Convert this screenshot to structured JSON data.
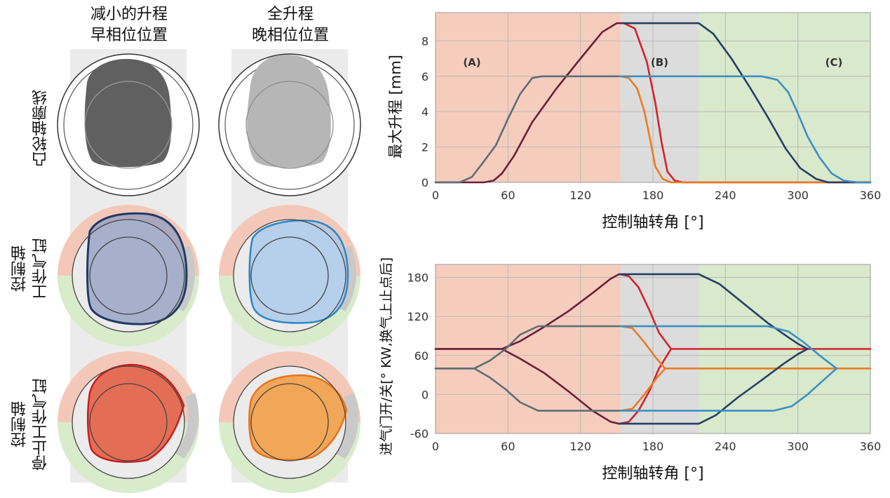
{
  "left": {
    "columns": [
      {
        "line1": "减小的升程",
        "line2": "早相位位置"
      },
      {
        "line1": "全升程",
        "line2": "晚相位位置"
      }
    ],
    "rows": [
      {
        "lines": [
          "凸轮轴廓线"
        ]
      },
      {
        "lines": [
          "控制轴",
          "工作气缸"
        ]
      },
      {
        "lines": [
          "控制轴",
          "停止工作气缸"
        ]
      }
    ]
  },
  "colors": {
    "zoneA": "#f6cdbd",
    "zoneB": "#dcdcdc",
    "zoneC": "#d9e9cc",
    "darkred": "#6b1f3b",
    "red": "#d3222a",
    "gray": "#5e6e76",
    "orange": "#ec7b22",
    "navy": "#243f66",
    "blue": "#3c90c4"
  },
  "chart_data": [
    {
      "type": "line",
      "xlabel": "控制轴转角 [°]",
      "ylabel": "最大升程 [mm]",
      "xlim": [
        0,
        360
      ],
      "ylim": [
        0,
        9.6
      ],
      "xticks": [
        "0",
        "60",
        "120",
        "180",
        "240",
        "300",
        "360"
      ],
      "yticks": [
        "0",
        "2",
        "4",
        "6",
        "8"
      ],
      "zones": [
        {
          "label": "(A)",
          "from": 0,
          "to": 153
        },
        {
          "label": "(B)",
          "from": 153,
          "to": 218
        },
        {
          "label": "(C)",
          "from": 218,
          "to": 360
        }
      ],
      "series": [
        {
          "name": "dark-red",
          "color": "#6b1f3b",
          "points": [
            [
              0,
              0
            ],
            [
              40,
              0
            ],
            [
              48,
              0.1
            ],
            [
              55,
              0.5
            ],
            [
              65,
              1.5
            ],
            [
              80,
              3.4
            ],
            [
              100,
              5.3
            ],
            [
              120,
              7.0
            ],
            [
              138,
              8.5
            ],
            [
              150,
              9.0
            ],
            [
              156,
              9.0
            ]
          ]
        },
        {
          "name": "red",
          "color": "#d3222a",
          "points": [
            [
              156,
              9.0
            ],
            [
              165,
              8.7
            ],
            [
              175,
              6.8
            ],
            [
              182,
              4.5
            ],
            [
              187,
              2.3
            ],
            [
              192,
              0.6
            ],
            [
              198,
              0.1
            ],
            [
              205,
              0
            ],
            [
              360,
              0
            ]
          ]
        },
        {
          "name": "gray",
          "color": "#5e6e76",
          "points": [
            [
              0,
              0
            ],
            [
              20,
              0
            ],
            [
              30,
              0.3
            ],
            [
              38,
              1.0
            ],
            [
              50,
              2.1
            ],
            [
              60,
              3.6
            ],
            [
              70,
              5.0
            ],
            [
              80,
              5.9
            ],
            [
              88,
              6.0
            ],
            [
              153,
              6.0
            ]
          ]
        },
        {
          "name": "orange",
          "color": "#ec7b22",
          "points": [
            [
              153,
              6.0
            ],
            [
              160,
              5.9
            ],
            [
              167,
              5.3
            ],
            [
              173,
              4.0
            ],
            [
              178,
              2.3
            ],
            [
              182,
              0.9
            ],
            [
              188,
              0.2
            ],
            [
              195,
              0
            ],
            [
              360,
              0
            ]
          ]
        },
        {
          "name": "navy",
          "color": "#243f66",
          "points": [
            [
              156,
              9.0
            ],
            [
              218,
              9.0
            ],
            [
              230,
              8.4
            ],
            [
              245,
              7.0
            ],
            [
              260,
              5.4
            ],
            [
              275,
              3.7
            ],
            [
              290,
              1.9
            ],
            [
              302,
              0.8
            ],
            [
              315,
              0.2
            ],
            [
              325,
              0
            ],
            [
              360,
              0
            ]
          ]
        },
        {
          "name": "blue",
          "color": "#3c90c4",
          "points": [
            [
              153,
              6.0
            ],
            [
              270,
              6.0
            ],
            [
              283,
              5.8
            ],
            [
              292,
              5.1
            ],
            [
              300,
              3.9
            ],
            [
              308,
              2.6
            ],
            [
              318,
              1.4
            ],
            [
              328,
              0.5
            ],
            [
              338,
              0.1
            ],
            [
              350,
              0
            ],
            [
              360,
              0
            ]
          ]
        }
      ]
    },
    {
      "type": "line",
      "xlabel": "控制轴转角 [°]",
      "ylabel": "进气门开/关[° KW,换气上止点后]",
      "xlim": [
        0,
        360
      ],
      "ylim": [
        -60,
        200
      ],
      "xticks": [
        "0",
        "60",
        "120",
        "180",
        "240",
        "300",
        "360"
      ],
      "yticks": [
        "-60",
        "0",
        "60",
        "120",
        "180"
      ],
      "zones": [
        {
          "label": "",
          "from": 0,
          "to": 153
        },
        {
          "label": "",
          "from": 153,
          "to": 218
        },
        {
          "label": "",
          "from": 218,
          "to": 360
        }
      ],
      "series": [
        {
          "name": "dark-red-close",
          "color": "#6b1f3b",
          "points": [
            [
              0,
              70
            ],
            [
              55,
              70
            ],
            [
              70,
              82
            ],
            [
              90,
              104
            ],
            [
              110,
              128
            ],
            [
              130,
              156
            ],
            [
              145,
              178
            ],
            [
              152,
              185
            ]
          ]
        },
        {
          "name": "dark-red-open",
          "color": "#6b1f3b",
          "points": [
            [
              0,
              70
            ],
            [
              55,
              70
            ],
            [
              70,
              55
            ],
            [
              90,
              33
            ],
            [
              110,
              5
            ],
            [
              130,
              -25
            ],
            [
              145,
              -42
            ],
            [
              152,
              -45
            ]
          ]
        },
        {
          "name": "red-close",
          "color": "#d3222a",
          "points": [
            [
              152,
              185
            ],
            [
              160,
              182
            ],
            [
              168,
              165
            ],
            [
              177,
              130
            ],
            [
              185,
              95
            ],
            [
              195,
              70
            ],
            [
              360,
              70
            ]
          ]
        },
        {
          "name": "red-open",
          "color": "#d3222a",
          "points": [
            [
              152,
              -45
            ],
            [
              160,
              -42
            ],
            [
              168,
              -25
            ],
            [
              177,
              5
            ],
            [
              185,
              40
            ],
            [
              195,
              70
            ]
          ]
        },
        {
          "name": "gray-close",
          "color": "#5e6e76",
          "points": [
            [
              0,
              40
            ],
            [
              32,
              40
            ],
            [
              45,
              52
            ],
            [
              58,
              70
            ],
            [
              70,
              92
            ],
            [
              85,
              105
            ],
            [
              153,
              105
            ]
          ]
        },
        {
          "name": "gray-open",
          "color": "#5e6e76",
          "points": [
            [
              0,
              40
            ],
            [
              32,
              40
            ],
            [
              45,
              26
            ],
            [
              58,
              8
            ],
            [
              70,
              -12
            ],
            [
              85,
              -25
            ],
            [
              153,
              -25
            ]
          ]
        },
        {
          "name": "orange-close",
          "color": "#ec7b22",
          "points": [
            [
              153,
              105
            ],
            [
              163,
              102
            ],
            [
              173,
              80
            ],
            [
              183,
              55
            ],
            [
              190,
              40
            ],
            [
              360,
              40
            ]
          ]
        },
        {
          "name": "orange-open",
          "color": "#ec7b22",
          "points": [
            [
              153,
              -25
            ],
            [
              163,
              -22
            ],
            [
              173,
              0
            ],
            [
              183,
              25
            ],
            [
              190,
              40
            ]
          ]
        },
        {
          "name": "navy-close",
          "color": "#243f66",
          "points": [
            [
              152,
              185
            ],
            [
              218,
              185
            ],
            [
              235,
              170
            ],
            [
              255,
              140
            ],
            [
              275,
              110
            ],
            [
              292,
              88
            ],
            [
              300,
              78
            ],
            [
              308,
              70
            ]
          ]
        },
        {
          "name": "navy-open",
          "color": "#243f66",
          "points": [
            [
              152,
              -45
            ],
            [
              218,
              -45
            ],
            [
              232,
              -32
            ],
            [
              250,
              -5
            ],
            [
              270,
              22
            ],
            [
              288,
              47
            ],
            [
              300,
              62
            ],
            [
              308,
              70
            ]
          ]
        },
        {
          "name": "blue-close",
          "color": "#3c90c4",
          "points": [
            [
              153,
              105
            ],
            [
              275,
              105
            ],
            [
              292,
              97
            ],
            [
              305,
              80
            ],
            [
              318,
              60
            ],
            [
              332,
              40
            ]
          ]
        },
        {
          "name": "blue-open",
          "color": "#3c90c4",
          "points": [
            [
              153,
              -25
            ],
            [
              280,
              -25
            ],
            [
              295,
              -18
            ],
            [
              308,
              0
            ],
            [
              320,
              20
            ],
            [
              332,
              40
            ]
          ]
        }
      ]
    }
  ]
}
